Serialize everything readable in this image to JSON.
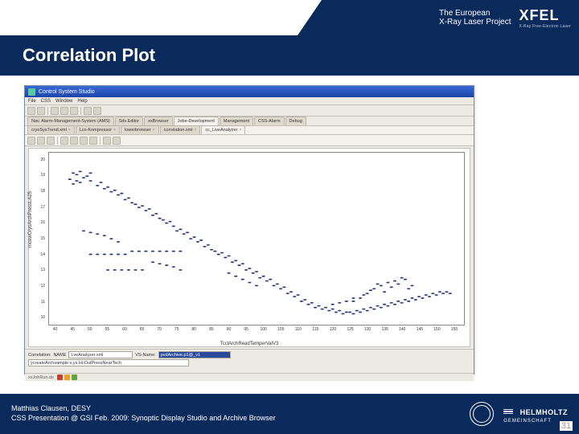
{
  "header": {
    "line1": "The European",
    "line2": "X-Ray Laser Project",
    "logo": "XFEL",
    "logo_sub": "X-Ray Free-Electron Laser"
  },
  "title": "Correlation Plot",
  "window": {
    "title": "Control System Studio",
    "menu": [
      "File",
      "CSS",
      "Window",
      "Help"
    ],
    "tabs": [
      {
        "label": "Nav. Alarm-Management-System (AMS)",
        "active": false
      },
      {
        "label": "Sds.Editor",
        "active": false
      },
      {
        "label": "xxBrowser",
        "active": false
      },
      {
        "label": "Jobe-Development",
        "active": true
      },
      {
        "label": "Management",
        "active": false
      },
      {
        "label": "CSS-Alarm",
        "active": false
      },
      {
        "label": "Debug",
        "active": false
      }
    ],
    "subtabs": [
      {
        "label": "cryoSysTrend.xml"
      },
      {
        "label": "Lco-Kompressor"
      },
      {
        "label": "lowerbrowser"
      },
      {
        "label": "correlation.xml"
      },
      {
        "label": "cc_LiveAnalyzer",
        "active": true
      }
    ],
    "plot": {
      "type": "scatter",
      "x_label": "TcclArchReadTemperValV3",
      "y_label": "mcewCryoArchPressLA25",
      "x_ticks": [
        40,
        45,
        50,
        55,
        60,
        65,
        70,
        75,
        80,
        85,
        90,
        95,
        100,
        105,
        110,
        115,
        120,
        125,
        130,
        135,
        140,
        145,
        150,
        155
      ],
      "y_ticks": [
        10,
        11,
        12,
        13,
        14,
        15,
        16,
        17,
        18,
        19,
        20
      ],
      "xlim": [
        38,
        158
      ],
      "ylim": [
        9.5,
        20.5
      ],
      "marker_color": "#2a3a7a",
      "marker_size": 1.2,
      "frame_color": "#888888",
      "bg": "#ffffff",
      "points": [
        [
          45,
          19.2
        ],
        [
          46,
          19.1
        ],
        [
          47,
          19.3
        ],
        [
          48,
          18.9
        ],
        [
          49,
          19.0
        ],
        [
          50,
          18.7
        ],
        [
          50,
          19.2
        ],
        [
          52,
          18.4
        ],
        [
          53,
          18.6
        ],
        [
          54,
          18.2
        ],
        [
          55,
          18.3
        ],
        [
          56,
          18.0
        ],
        [
          57,
          18.1
        ],
        [
          58,
          17.8
        ],
        [
          59,
          17.9
        ],
        [
          60,
          17.5
        ],
        [
          61,
          17.6
        ],
        [
          62,
          17.3
        ],
        [
          63,
          17.2
        ],
        [
          64,
          17.0
        ],
        [
          65,
          17.1
        ],
        [
          66,
          16.8
        ],
        [
          67,
          16.9
        ],
        [
          68,
          16.5
        ],
        [
          69,
          16.6
        ],
        [
          70,
          16.3
        ],
        [
          71,
          16.2
        ],
        [
          72,
          16.0
        ],
        [
          73,
          16.1
        ],
        [
          74,
          15.8
        ],
        [
          75,
          15.5
        ],
        [
          76,
          15.6
        ],
        [
          77,
          15.3
        ],
        [
          78,
          15.4
        ],
        [
          79,
          15.0
        ],
        [
          80,
          15.1
        ],
        [
          81,
          14.8
        ],
        [
          82,
          14.9
        ],
        [
          83,
          14.5
        ],
        [
          84,
          14.6
        ],
        [
          85,
          14.3
        ],
        [
          86,
          14.2
        ],
        [
          87,
          14.0
        ],
        [
          88,
          14.1
        ],
        [
          89,
          13.8
        ],
        [
          90,
          13.9
        ],
        [
          91,
          13.5
        ],
        [
          92,
          13.6
        ],
        [
          93,
          13.3
        ],
        [
          94,
          13.4
        ],
        [
          95,
          13.0
        ],
        [
          96,
          13.1
        ],
        [
          97,
          12.8
        ],
        [
          98,
          12.9
        ],
        [
          99,
          12.5
        ],
        [
          100,
          12.6
        ],
        [
          101,
          12.3
        ],
        [
          102,
          12.4
        ],
        [
          103,
          12.0
        ],
        [
          104,
          12.1
        ],
        [
          105,
          11.8
        ],
        [
          106,
          11.9
        ],
        [
          107,
          11.5
        ],
        [
          108,
          11.6
        ],
        [
          109,
          11.3
        ],
        [
          110,
          11.4
        ],
        [
          111,
          11.0
        ],
        [
          112,
          11.1
        ],
        [
          113,
          10.8
        ],
        [
          114,
          10.9
        ],
        [
          115,
          10.6
        ],
        [
          116,
          10.7
        ],
        [
          117,
          10.5
        ],
        [
          118,
          10.6
        ],
        [
          119,
          10.4
        ],
        [
          120,
          10.5
        ],
        [
          121,
          10.3
        ],
        [
          122,
          10.4
        ],
        [
          123,
          10.2
        ],
        [
          124,
          10.3
        ],
        [
          125,
          10.3
        ],
        [
          126,
          10.2
        ],
        [
          127,
          10.4
        ],
        [
          128,
          10.3
        ],
        [
          129,
          10.5
        ],
        [
          130,
          10.4
        ],
        [
          131,
          10.6
        ],
        [
          132,
          10.5
        ],
        [
          133,
          10.7
        ],
        [
          134,
          10.6
        ],
        [
          135,
          10.8
        ],
        [
          136,
          10.7
        ],
        [
          137,
          10.9
        ],
        [
          138,
          10.8
        ],
        [
          139,
          11.0
        ],
        [
          140,
          10.9
        ],
        [
          141,
          11.1
        ],
        [
          142,
          11.0
        ],
        [
          143,
          11.2
        ],
        [
          144,
          11.1
        ],
        [
          145,
          11.3
        ],
        [
          146,
          11.2
        ],
        [
          147,
          11.4
        ],
        [
          148,
          11.3
        ],
        [
          149,
          11.5
        ],
        [
          150,
          11.4
        ],
        [
          151,
          11.6
        ],
        [
          152,
          11.5
        ],
        [
          153,
          11.6
        ],
        [
          154,
          11.5
        ],
        [
          50,
          14.0
        ],
        [
          52,
          14.0
        ],
        [
          54,
          14.0
        ],
        [
          56,
          14.0
        ],
        [
          58,
          14.0
        ],
        [
          60,
          14.0
        ],
        [
          48,
          15.5
        ],
        [
          50,
          15.4
        ],
        [
          52,
          15.3
        ],
        [
          54,
          15.2
        ],
        [
          56,
          15.0
        ],
        [
          58,
          14.8
        ],
        [
          62,
          14.2
        ],
        [
          64,
          14.2
        ],
        [
          66,
          14.2
        ],
        [
          68,
          14.2
        ],
        [
          70,
          14.2
        ],
        [
          72,
          14.2
        ],
        [
          74,
          14.2
        ],
        [
          76,
          14.2
        ],
        [
          55,
          13.0
        ],
        [
          57,
          13.0
        ],
        [
          59,
          13.0
        ],
        [
          61,
          13.0
        ],
        [
          63,
          13.0
        ],
        [
          65,
          13.0
        ],
        [
          130,
          11.5
        ],
        [
          132,
          11.8
        ],
        [
          134,
          12.0
        ],
        [
          136,
          12.2
        ],
        [
          135,
          11.6
        ],
        [
          137,
          11.9
        ],
        [
          138,
          12.3
        ],
        [
          140,
          12.5
        ],
        [
          139,
          12.1
        ],
        [
          141,
          12.4
        ],
        [
          142,
          11.8
        ],
        [
          143,
          12.0
        ],
        [
          128,
          11.2
        ],
        [
          126,
          11.0
        ],
        [
          129,
          11.4
        ],
        [
          131,
          11.7
        ],
        [
          133,
          12.1
        ],
        [
          45,
          18.5
        ],
        [
          46,
          18.7
        ],
        [
          44,
          18.8
        ],
        [
          47,
          18.6
        ],
        [
          120,
          10.8
        ],
        [
          122,
          10.9
        ],
        [
          124,
          11.0
        ],
        [
          126,
          11.2
        ],
        [
          68,
          13.5
        ],
        [
          70,
          13.4
        ],
        [
          72,
          13.3
        ],
        [
          74,
          13.2
        ],
        [
          76,
          13.0
        ],
        [
          90,
          12.8
        ],
        [
          92,
          12.6
        ],
        [
          94,
          12.4
        ],
        [
          96,
          12.2
        ],
        [
          98,
          12.0
        ]
      ]
    },
    "bottom": {
      "correlation_label": "Correlation:",
      "name_label": "NAME",
      "name_value": "LveAnalyzer.xml",
      "vs_label": "VS-Name:",
      "vs_value": "pvdArchive.p1@_v1",
      "row2_left": "ycreateArchsample:s,ys.HcOutPressNearTech",
      "status": "xxJobRun.de",
      "icon_colors": [
        "#d43a2a",
        "#e8a030",
        "#5aa83a"
      ]
    }
  },
  "footer": {
    "line1": "Matthias Clausen, DESY",
    "line2": "CSS Presentation @ GSI Feb. 2009: Synoptic Display Studio and Archive Browser",
    "helmholtz": "HELMHOLTZ",
    "helmholtz_sub": "GEMEINSCHAFT",
    "page": "31"
  }
}
